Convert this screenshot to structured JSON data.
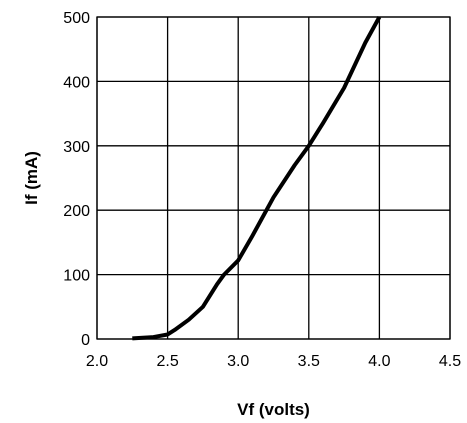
{
  "chart_data": {
    "type": "line",
    "title": "",
    "xlabel": "Vf (volts)",
    "ylabel": "If (mA)",
    "xlim": [
      2.0,
      4.5
    ],
    "ylim": [
      0,
      500
    ],
    "x_ticks": [
      2.0,
      2.5,
      3.0,
      3.5,
      4.0,
      4.5
    ],
    "x_tick_labels": [
      "2.0",
      "2.5",
      "3.0",
      "3.5",
      "4.0",
      "4.5"
    ],
    "y_ticks": [
      0,
      100,
      200,
      300,
      400,
      500
    ],
    "y_tick_labels": [
      "0",
      "100",
      "200",
      "300",
      "400",
      "500"
    ],
    "grid": true,
    "legend": "none",
    "series": [
      {
        "color": "#000000",
        "x": [
          2.25,
          2.4,
          2.5,
          2.55,
          2.65,
          2.75,
          2.85,
          2.9,
          3.0,
          3.1,
          3.25,
          3.4,
          3.5,
          3.6,
          3.75,
          3.9,
          4.0
        ],
        "y": [
          1,
          3,
          7,
          14,
          30,
          50,
          85,
          100,
          122,
          160,
          220,
          270,
          300,
          335,
          390,
          460,
          500
        ]
      }
    ]
  }
}
